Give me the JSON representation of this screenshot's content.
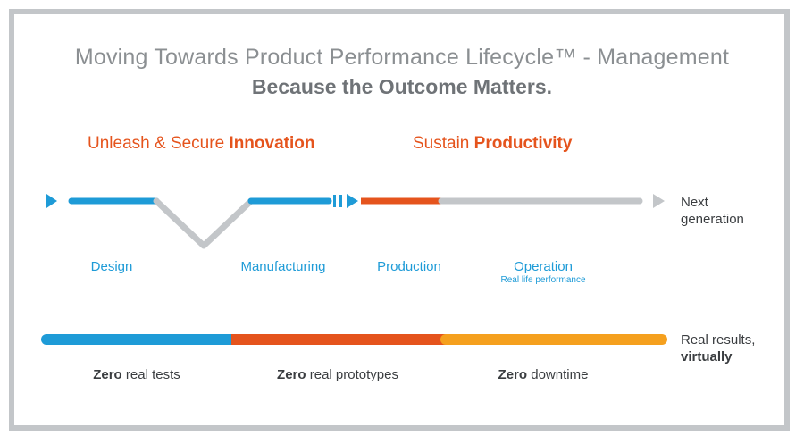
{
  "title": {
    "line1": "Moving Towards Product Performance Lifecycle™ - Management",
    "line2": "Because the Outcome Matters."
  },
  "phases": [
    {
      "prefix": "Unleash & Secure ",
      "emphasis": "Innovation"
    },
    {
      "prefix": "Sustain ",
      "emphasis": "Productivity"
    }
  ],
  "stages": [
    {
      "label": "Design"
    },
    {
      "label": "Manufacturing"
    },
    {
      "label": "Production"
    },
    {
      "label": "Operation",
      "sublabel": "Real life performance"
    }
  ],
  "next_label": {
    "line1": "Next",
    "line2": "generation"
  },
  "results_label": {
    "line1": "Real results,",
    "line2": "virtually"
  },
  "zeros": [
    {
      "bold": "Zero",
      "rest": " real tests"
    },
    {
      "bold": "Zero",
      "rest": " real prototypes"
    },
    {
      "bold": "Zero",
      "rest": " downtime"
    }
  ],
  "colors": {
    "blue": "#1e9bd7",
    "orange_red": "#e5541d",
    "orange": "#f5a01e",
    "gray": "#c3c6c9"
  }
}
